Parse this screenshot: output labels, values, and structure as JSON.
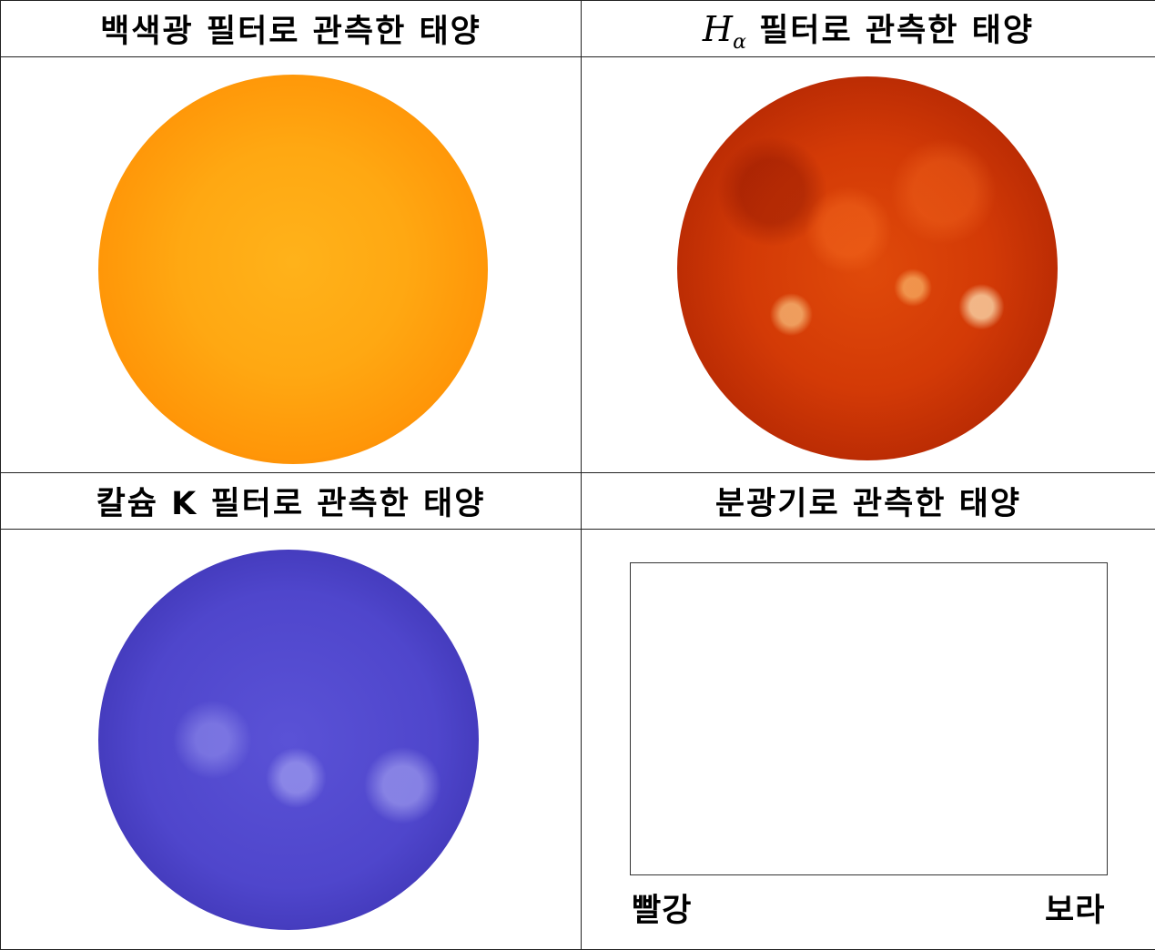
{
  "cells": {
    "white_light": {
      "title": "백색광 필터로 관측한 태양"
    },
    "h_alpha": {
      "math_main": "H",
      "math_sub": "α",
      "title_rest": " 필터로 관측한 태양"
    },
    "calcium_k": {
      "title": "칼슘 K 필터로 관측한 태양"
    },
    "spectroscope": {
      "title": "분광기로 관측한 태양",
      "left_label": "빨강",
      "right_label": "보라"
    }
  },
  "colors": {
    "white_light_sun": "#ffa812",
    "h_alpha_sun": "#d33a06",
    "calcium_k_sun": "#4f46cc",
    "grid_line": "#222222"
  }
}
